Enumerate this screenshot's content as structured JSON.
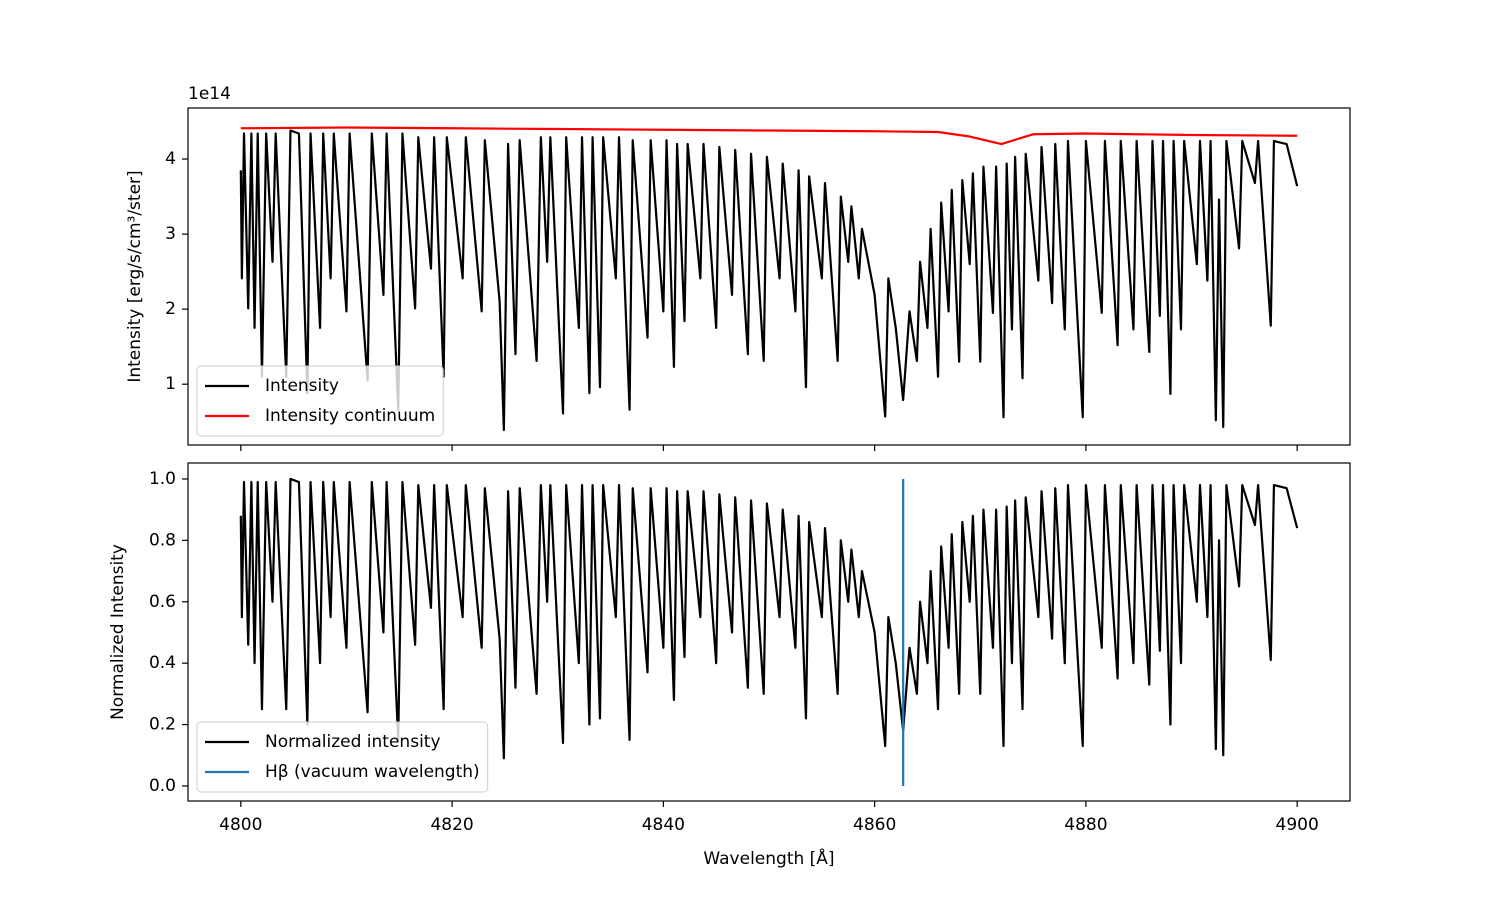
{
  "chart_data": [
    {
      "type": "line",
      "ylabel": "Intensity [erg/s/cm³/ster]",
      "offset_label": "1e14",
      "xlim": [
        4795,
        4905
      ],
      "xticks": [
        4800,
        4820,
        4840,
        4860,
        4880,
        4900
      ],
      "ylim": [
        0.19,
        4.68
      ],
      "yticks": [
        1,
        2,
        3,
        4
      ],
      "legend": "lower left",
      "x": [
        4800.0,
        4800.1,
        4800.3,
        4800.7,
        4801.0,
        4801.3,
        4801.6,
        4802.0,
        4802.4,
        4803.0,
        4803.3,
        4804.3,
        4804.7,
        4805.5,
        4806.3,
        4806.6,
        4807.5,
        4807.8,
        4808.5,
        4808.8,
        4810.0,
        4810.3,
        4812.0,
        4812.4,
        4813.5,
        4813.8,
        4814.9,
        4815.3,
        4816.5,
        4816.8,
        4818.0,
        4818.3,
        4819.2,
        4819.5,
        4821.0,
        4821.3,
        4822.8,
        4823.1,
        4824.5,
        4824.9,
        4825.3,
        4826.0,
        4826.4,
        4828.0,
        4828.4,
        4829.0,
        4829.3,
        4830.5,
        4830.8,
        4832.0,
        4832.3,
        4833.0,
        4833.3,
        4834.0,
        4834.3,
        4835.5,
        4835.8,
        4836.8,
        4837.1,
        4838.5,
        4838.8,
        4840.0,
        4840.3,
        4841.0,
        4841.3,
        4842.0,
        4842.3,
        4843.5,
        4843.8,
        4845.0,
        4845.3,
        4846.5,
        4846.8,
        4848.0,
        4848.3,
        4849.5,
        4849.8,
        4851.0,
        4851.3,
        4852.5,
        4852.8,
        4853.5,
        4853.8,
        4855.0,
        4855.3,
        4856.5,
        4856.8,
        4857.5,
        4857.8,
        4858.5,
        4858.8,
        4860.0,
        4861.0,
        4861.3,
        4862.0,
        4862.7,
        4863.3,
        4864.0,
        4864.3,
        4865.0,
        4865.3,
        4866.0,
        4866.3,
        4867.0,
        4867.3,
        4868.0,
        4868.3,
        4869.0,
        4869.3,
        4870.0,
        4870.3,
        4871.2,
        4871.5,
        4872.2,
        4872.5,
        4873.0,
        4873.3,
        4874.0,
        4874.3,
        4875.5,
        4875.8,
        4876.8,
        4877.1,
        4878.0,
        4878.3,
        4879.7,
        4880.0,
        4881.5,
        4881.8,
        4883.0,
        4883.3,
        4884.5,
        4884.8,
        4886.0,
        4886.3,
        4887.0,
        4887.3,
        4888.0,
        4888.3,
        4889.0,
        4889.3,
        4890.5,
        4890.8,
        4891.5,
        4891.8,
        4892.3,
        4892.6,
        4893.0,
        4893.3,
        4894.5,
        4894.8,
        4896.0,
        4896.3,
        4897.5,
        4897.8,
        4899.0,
        4900.0
      ],
      "series": [
        {
          "name": "Intensity",
          "color": "#000000",
          "values": [
            3.85,
            2.41,
            4.34,
            2.01,
            4.34,
            1.75,
            4.34,
            1.1,
            4.34,
            2.63,
            4.34,
            1.1,
            4.38,
            4.34,
            0.88,
            4.34,
            1.75,
            4.34,
            2.41,
            4.34,
            1.97,
            4.34,
            1.05,
            4.34,
            2.19,
            4.34,
            0.66,
            4.34,
            2.01,
            4.29,
            2.54,
            4.29,
            1.1,
            4.29,
            2.41,
            4.29,
            1.97,
            4.25,
            2.1,
            0.39,
            4.2,
            1.4,
            4.25,
            1.31,
            4.29,
            2.63,
            4.29,
            0.61,
            4.29,
            1.75,
            4.29,
            0.88,
            4.29,
            0.96,
            4.29,
            2.41,
            4.29,
            0.66,
            4.25,
            1.62,
            4.25,
            1.97,
            4.25,
            1.23,
            4.2,
            1.84,
            4.2,
            2.41,
            4.2,
            1.75,
            4.16,
            2.19,
            4.12,
            1.4,
            4.07,
            1.31,
            4.03,
            2.41,
            3.94,
            1.97,
            3.85,
            0.96,
            3.77,
            2.41,
            3.68,
            1.31,
            3.5,
            2.63,
            3.37,
            2.41,
            3.07,
            2.19,
            0.57,
            2.41,
            1.75,
            0.79,
            1.97,
            1.31,
            2.63,
            1.75,
            3.07,
            1.1,
            3.42,
            1.97,
            3.59,
            1.3,
            3.72,
            2.6,
            3.81,
            1.3,
            3.9,
            1.95,
            3.9,
            0.56,
            3.94,
            1.73,
            4.03,
            1.08,
            4.07,
            2.38,
            4.16,
            2.08,
            4.2,
            1.73,
            4.24,
            0.56,
            4.24,
            1.95,
            4.24,
            1.52,
            4.24,
            1.73,
            4.24,
            1.43,
            4.24,
            1.91,
            4.24,
            0.87,
            4.24,
            1.73,
            4.24,
            2.6,
            4.24,
            2.38,
            4.24,
            0.52,
            3.46,
            0.43,
            4.24,
            2.81,
            4.24,
            3.68,
            4.24,
            1.78,
            4.24,
            4.2,
            3.64
          ]
        },
        {
          "name": "Intensity continuum",
          "color": "#ff0000",
          "x": [
            4800,
            4810,
            4820,
            4830,
            4840,
            4850,
            4860,
            4866,
            4869,
            4872,
            4875,
            4880,
            4890,
            4900
          ],
          "values": [
            4.41,
            4.42,
            4.41,
            4.4,
            4.39,
            4.38,
            4.37,
            4.36,
            4.3,
            4.2,
            4.33,
            4.34,
            4.32,
            4.31
          ]
        }
      ]
    },
    {
      "type": "line",
      "ylabel": "Normalized Intensity",
      "xlabel": "Wavelength [Å]",
      "xlim": [
        4795,
        4905
      ],
      "xticks": [
        4800,
        4820,
        4840,
        4860,
        4880,
        4900
      ],
      "ylim": [
        -0.049,
        1.052
      ],
      "yticks": [
        {
          "value": 0,
          "label": "0.0"
        },
        0.2,
        0.4,
        0.6,
        0.8,
        {
          "value": 1,
          "label": "1.0"
        }
      ],
      "legend": "lower left",
      "x": [
        4800.0,
        4800.1,
        4800.3,
        4800.7,
        4801.0,
        4801.3,
        4801.6,
        4802.0,
        4802.4,
        4803.0,
        4803.3,
        4804.3,
        4804.7,
        4805.5,
        4806.3,
        4806.6,
        4807.5,
        4807.8,
        4808.5,
        4808.8,
        4810.0,
        4810.3,
        4812.0,
        4812.4,
        4813.5,
        4813.8,
        4814.9,
        4815.3,
        4816.5,
        4816.8,
        4818.0,
        4818.3,
        4819.2,
        4819.5,
        4821.0,
        4821.3,
        4822.8,
        4823.1,
        4824.5,
        4824.9,
        4825.3,
        4826.0,
        4826.4,
        4828.0,
        4828.4,
        4829.0,
        4829.3,
        4830.5,
        4830.8,
        4832.0,
        4832.3,
        4833.0,
        4833.3,
        4834.0,
        4834.3,
        4835.5,
        4835.8,
        4836.8,
        4837.1,
        4838.5,
        4838.8,
        4840.0,
        4840.3,
        4841.0,
        4841.3,
        4842.0,
        4842.3,
        4843.5,
        4843.8,
        4845.0,
        4845.3,
        4846.5,
        4846.8,
        4848.0,
        4848.3,
        4849.5,
        4849.8,
        4851.0,
        4851.3,
        4852.5,
        4852.8,
        4853.5,
        4853.8,
        4855.0,
        4855.3,
        4856.5,
        4856.8,
        4857.5,
        4857.8,
        4858.5,
        4858.8,
        4860.0,
        4861.0,
        4861.3,
        4862.0,
        4862.7,
        4863.3,
        4864.0,
        4864.3,
        4865.0,
        4865.3,
        4866.0,
        4866.3,
        4867.0,
        4867.3,
        4868.0,
        4868.3,
        4869.0,
        4869.3,
        4870.0,
        4870.3,
        4871.2,
        4871.5,
        4872.2,
        4872.5,
        4873.0,
        4873.3,
        4874.0,
        4874.3,
        4875.5,
        4875.8,
        4876.8,
        4877.1,
        4878.0,
        4878.3,
        4879.7,
        4880.0,
        4881.5,
        4881.8,
        4883.0,
        4883.3,
        4884.5,
        4884.8,
        4886.0,
        4886.3,
        4887.0,
        4887.3,
        4888.0,
        4888.3,
        4889.0,
        4889.3,
        4890.5,
        4890.8,
        4891.5,
        4891.8,
        4892.3,
        4892.6,
        4893.0,
        4893.3,
        4894.5,
        4894.8,
        4896.0,
        4896.3,
        4897.5,
        4897.8,
        4899.0,
        4900.0
      ],
      "series": [
        {
          "name": "Normalized intensity",
          "color": "#000000",
          "values": [
            0.88,
            0.55,
            0.99,
            0.46,
            0.99,
            0.4,
            0.99,
            0.25,
            0.99,
            0.6,
            0.99,
            0.25,
            1.0,
            0.99,
            0.2,
            0.99,
            0.4,
            0.99,
            0.55,
            0.99,
            0.45,
            0.99,
            0.24,
            0.99,
            0.5,
            0.99,
            0.15,
            0.99,
            0.46,
            0.98,
            0.58,
            0.98,
            0.25,
            0.98,
            0.55,
            0.98,
            0.45,
            0.97,
            0.48,
            0.09,
            0.96,
            0.32,
            0.97,
            0.3,
            0.98,
            0.6,
            0.98,
            0.14,
            0.98,
            0.4,
            0.98,
            0.2,
            0.98,
            0.22,
            0.98,
            0.55,
            0.98,
            0.15,
            0.97,
            0.37,
            0.97,
            0.45,
            0.97,
            0.28,
            0.96,
            0.42,
            0.96,
            0.55,
            0.96,
            0.4,
            0.95,
            0.5,
            0.94,
            0.32,
            0.93,
            0.3,
            0.92,
            0.55,
            0.9,
            0.45,
            0.88,
            0.22,
            0.86,
            0.55,
            0.84,
            0.3,
            0.8,
            0.6,
            0.77,
            0.55,
            0.7,
            0.5,
            0.13,
            0.55,
            0.4,
            0.18,
            0.45,
            0.3,
            0.6,
            0.4,
            0.7,
            0.25,
            0.78,
            0.45,
            0.82,
            0.3,
            0.86,
            0.6,
            0.88,
            0.3,
            0.9,
            0.45,
            0.9,
            0.13,
            0.91,
            0.4,
            0.93,
            0.25,
            0.94,
            0.55,
            0.96,
            0.48,
            0.97,
            0.4,
            0.98,
            0.13,
            0.98,
            0.45,
            0.98,
            0.35,
            0.98,
            0.4,
            0.98,
            0.33,
            0.98,
            0.44,
            0.98,
            0.2,
            0.98,
            0.4,
            0.98,
            0.6,
            0.98,
            0.55,
            0.98,
            0.12,
            0.8,
            0.1,
            0.98,
            0.65,
            0.98,
            0.85,
            0.98,
            0.41,
            0.98,
            0.97,
            0.84
          ]
        },
        {
          "name": "Hβ (vacuum wavelength)",
          "color": "#1f77b4",
          "x": [
            4862.7,
            4862.7
          ],
          "values": [
            0,
            1
          ]
        }
      ]
    }
  ]
}
